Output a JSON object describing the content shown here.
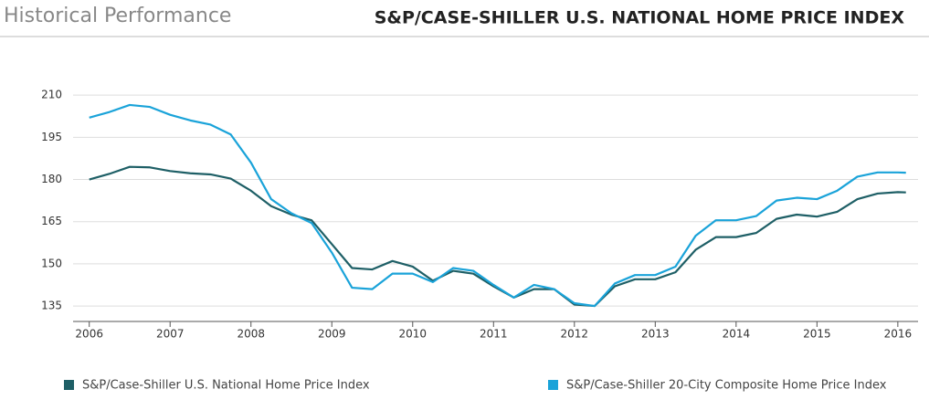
{
  "chart_data": {
    "type": "line",
    "section_title": "Historical Performance",
    "title": "S&P/CASE-SHILLER U.S. NATIONAL HOME PRICE INDEX",
    "x": [
      2006.0,
      2006.25,
      2006.5,
      2006.75,
      2007.0,
      2007.25,
      2007.5,
      2007.75,
      2008.0,
      2008.25,
      2008.5,
      2008.75,
      2009.0,
      2009.25,
      2009.5,
      2009.75,
      2010.0,
      2010.25,
      2010.5,
      2010.75,
      2011.0,
      2011.25,
      2011.5,
      2011.75,
      2012.0,
      2012.25,
      2012.5,
      2012.75,
      2013.0,
      2013.25,
      2013.5,
      2013.75,
      2014.0,
      2014.25,
      2014.5,
      2014.75,
      2015.0,
      2015.25,
      2015.5,
      2015.75,
      2016.0,
      2016.1
    ],
    "series": [
      {
        "name": "S&P/Case-Shiller U.S. National Home Price Index",
        "color": "#1e5f66",
        "values": [
          180,
          182,
          184.5,
          184.3,
          183,
          182.2,
          181.8,
          180.3,
          176,
          170.5,
          167.5,
          165.5,
          157,
          148.5,
          148,
          151,
          149,
          144,
          147.5,
          146.5,
          142,
          138,
          141,
          141,
          135.5,
          135,
          142,
          144.5,
          144.5,
          147,
          155,
          159.5,
          159.5,
          161,
          166,
          167.5,
          166.8,
          168.5,
          173,
          175,
          175.5,
          175.4
        ]
      },
      {
        "name": "S&P/Case-Shiller 20-City Composite Home Price Index",
        "color": "#1aa3d9",
        "values": [
          202,
          204,
          206.5,
          205.8,
          203,
          201,
          199.5,
          196,
          186,
          173,
          168,
          164.5,
          154,
          141.5,
          141,
          146.5,
          146.5,
          143.5,
          148.5,
          147.5,
          142.5,
          138,
          142.5,
          141,
          136,
          135,
          143,
          146,
          146,
          149,
          160,
          165.5,
          165.5,
          167,
          172.5,
          173.5,
          173,
          176,
          181,
          182.5,
          182.5,
          182.4
        ]
      }
    ],
    "xlim": [
      2005.8,
      2016.25
    ],
    "xticks": [
      2006,
      2007,
      2008,
      2009,
      2010,
      2011,
      2012,
      2013,
      2014,
      2015,
      2016
    ],
    "ylim": [
      129.5,
      212
    ],
    "yticks": [
      135,
      150,
      165,
      180,
      195,
      210
    ],
    "grid": true
  }
}
